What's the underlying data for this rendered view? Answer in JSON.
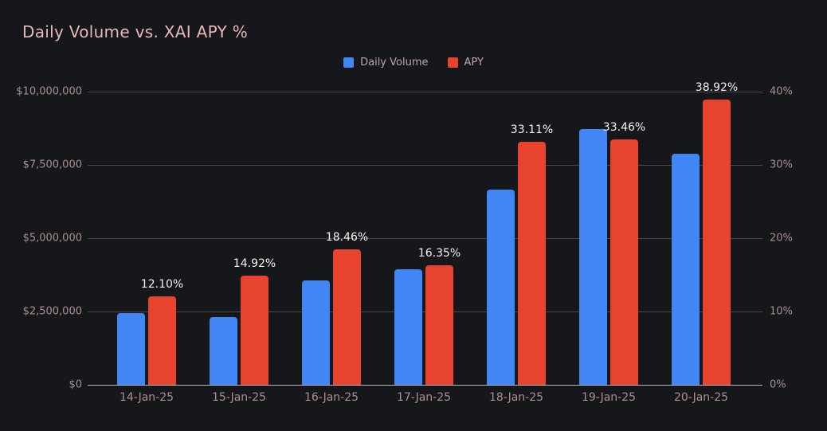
{
  "title": "Daily Volume vs. XAI APY %",
  "legend": {
    "items": [
      {
        "label": "Daily Volume",
        "color": "#4285f4"
      },
      {
        "label": "APY",
        "color": "#e8432f"
      }
    ]
  },
  "colors": {
    "background": "#15171b",
    "title_text": "#e9b8ba",
    "axis_text": "#aa8f92",
    "legend_text": "#bfa6a8",
    "gridline": "#46494e",
    "zero_line": "#b6b9bc",
    "volume_bar": "#4285f4",
    "apy_bar": "#e8432f",
    "data_label": "#f4f1f1"
  },
  "chart_data": {
    "type": "bar",
    "title": "Daily Volume vs. XAI APY %",
    "categories": [
      "14-Jan-25",
      "15-Jan-25",
      "16-Jan-25",
      "17-Jan-25",
      "18-Jan-25",
      "19-Jan-25",
      "20-Jan-25"
    ],
    "series": [
      {
        "name": "Daily Volume",
        "axis": "left",
        "color": "#4285f4",
        "values": [
          2450000,
          2320000,
          3560000,
          3930000,
          6660000,
          8720000,
          7890000
        ]
      },
      {
        "name": "APY",
        "axis": "right",
        "color": "#e8432f",
        "values": [
          12.1,
          14.92,
          18.46,
          16.35,
          33.11,
          33.46,
          38.92
        ],
        "data_labels": [
          "12.10%",
          "14.92%",
          "18.46%",
          "16.35%",
          "33.11%",
          "33.46%",
          "38.92%"
        ]
      }
    ],
    "left_axis": {
      "range": [
        0,
        10000000
      ],
      "ticks": [
        "$0",
        "$2,500,000",
        "$5,000,000",
        "$7,500,000",
        "$10,000,000"
      ]
    },
    "right_axis": {
      "range": [
        0,
        40
      ],
      "ticks": [
        "0%",
        "10%",
        "20%",
        "30%",
        "40%"
      ]
    },
    "grid": "horizontal",
    "legend_position": "top-center"
  }
}
